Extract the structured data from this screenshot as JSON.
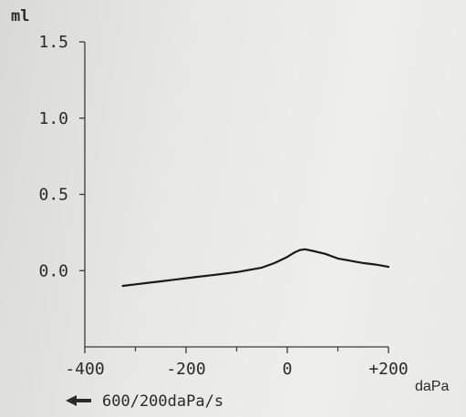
{
  "chart_data": {
    "type": "line",
    "ylabel": "ml",
    "xlabel": "daPa",
    "scan_rate_label": "600/200daPa/s",
    "scan_direction": "left",
    "xlim": [
      -400,
      200
    ],
    "ylim": [
      -0.5,
      1.5
    ],
    "x_ticks": [
      -400,
      -200,
      0,
      200
    ],
    "x_tick_labels": [
      "-400",
      "-200",
      "0",
      "+200"
    ],
    "x_minor_ticks": [
      -300,
      -100,
      100
    ],
    "y_ticks": [
      0.0,
      0.5,
      1.0,
      1.5
    ],
    "y_tick_labels": [
      "0.0",
      "0.5",
      "1.0",
      "1.5"
    ],
    "grid": false,
    "series": [
      {
        "color": "#1a1a1a",
        "x": [
          -325,
          -300,
          -275,
          -250,
          -225,
          -200,
          -175,
          -150,
          -125,
          -100,
          -75,
          -50,
          -25,
          0,
          15,
          25,
          35,
          50,
          75,
          100,
          125,
          150,
          175,
          200
        ],
        "y": [
          -0.1,
          -0.09,
          -0.08,
          -0.07,
          -0.06,
          -0.05,
          -0.04,
          -0.03,
          -0.02,
          -0.01,
          0.005,
          0.02,
          0.05,
          0.09,
          0.12,
          0.135,
          0.14,
          0.13,
          0.11,
          0.08,
          0.065,
          0.05,
          0.04,
          0.025
        ]
      }
    ]
  }
}
